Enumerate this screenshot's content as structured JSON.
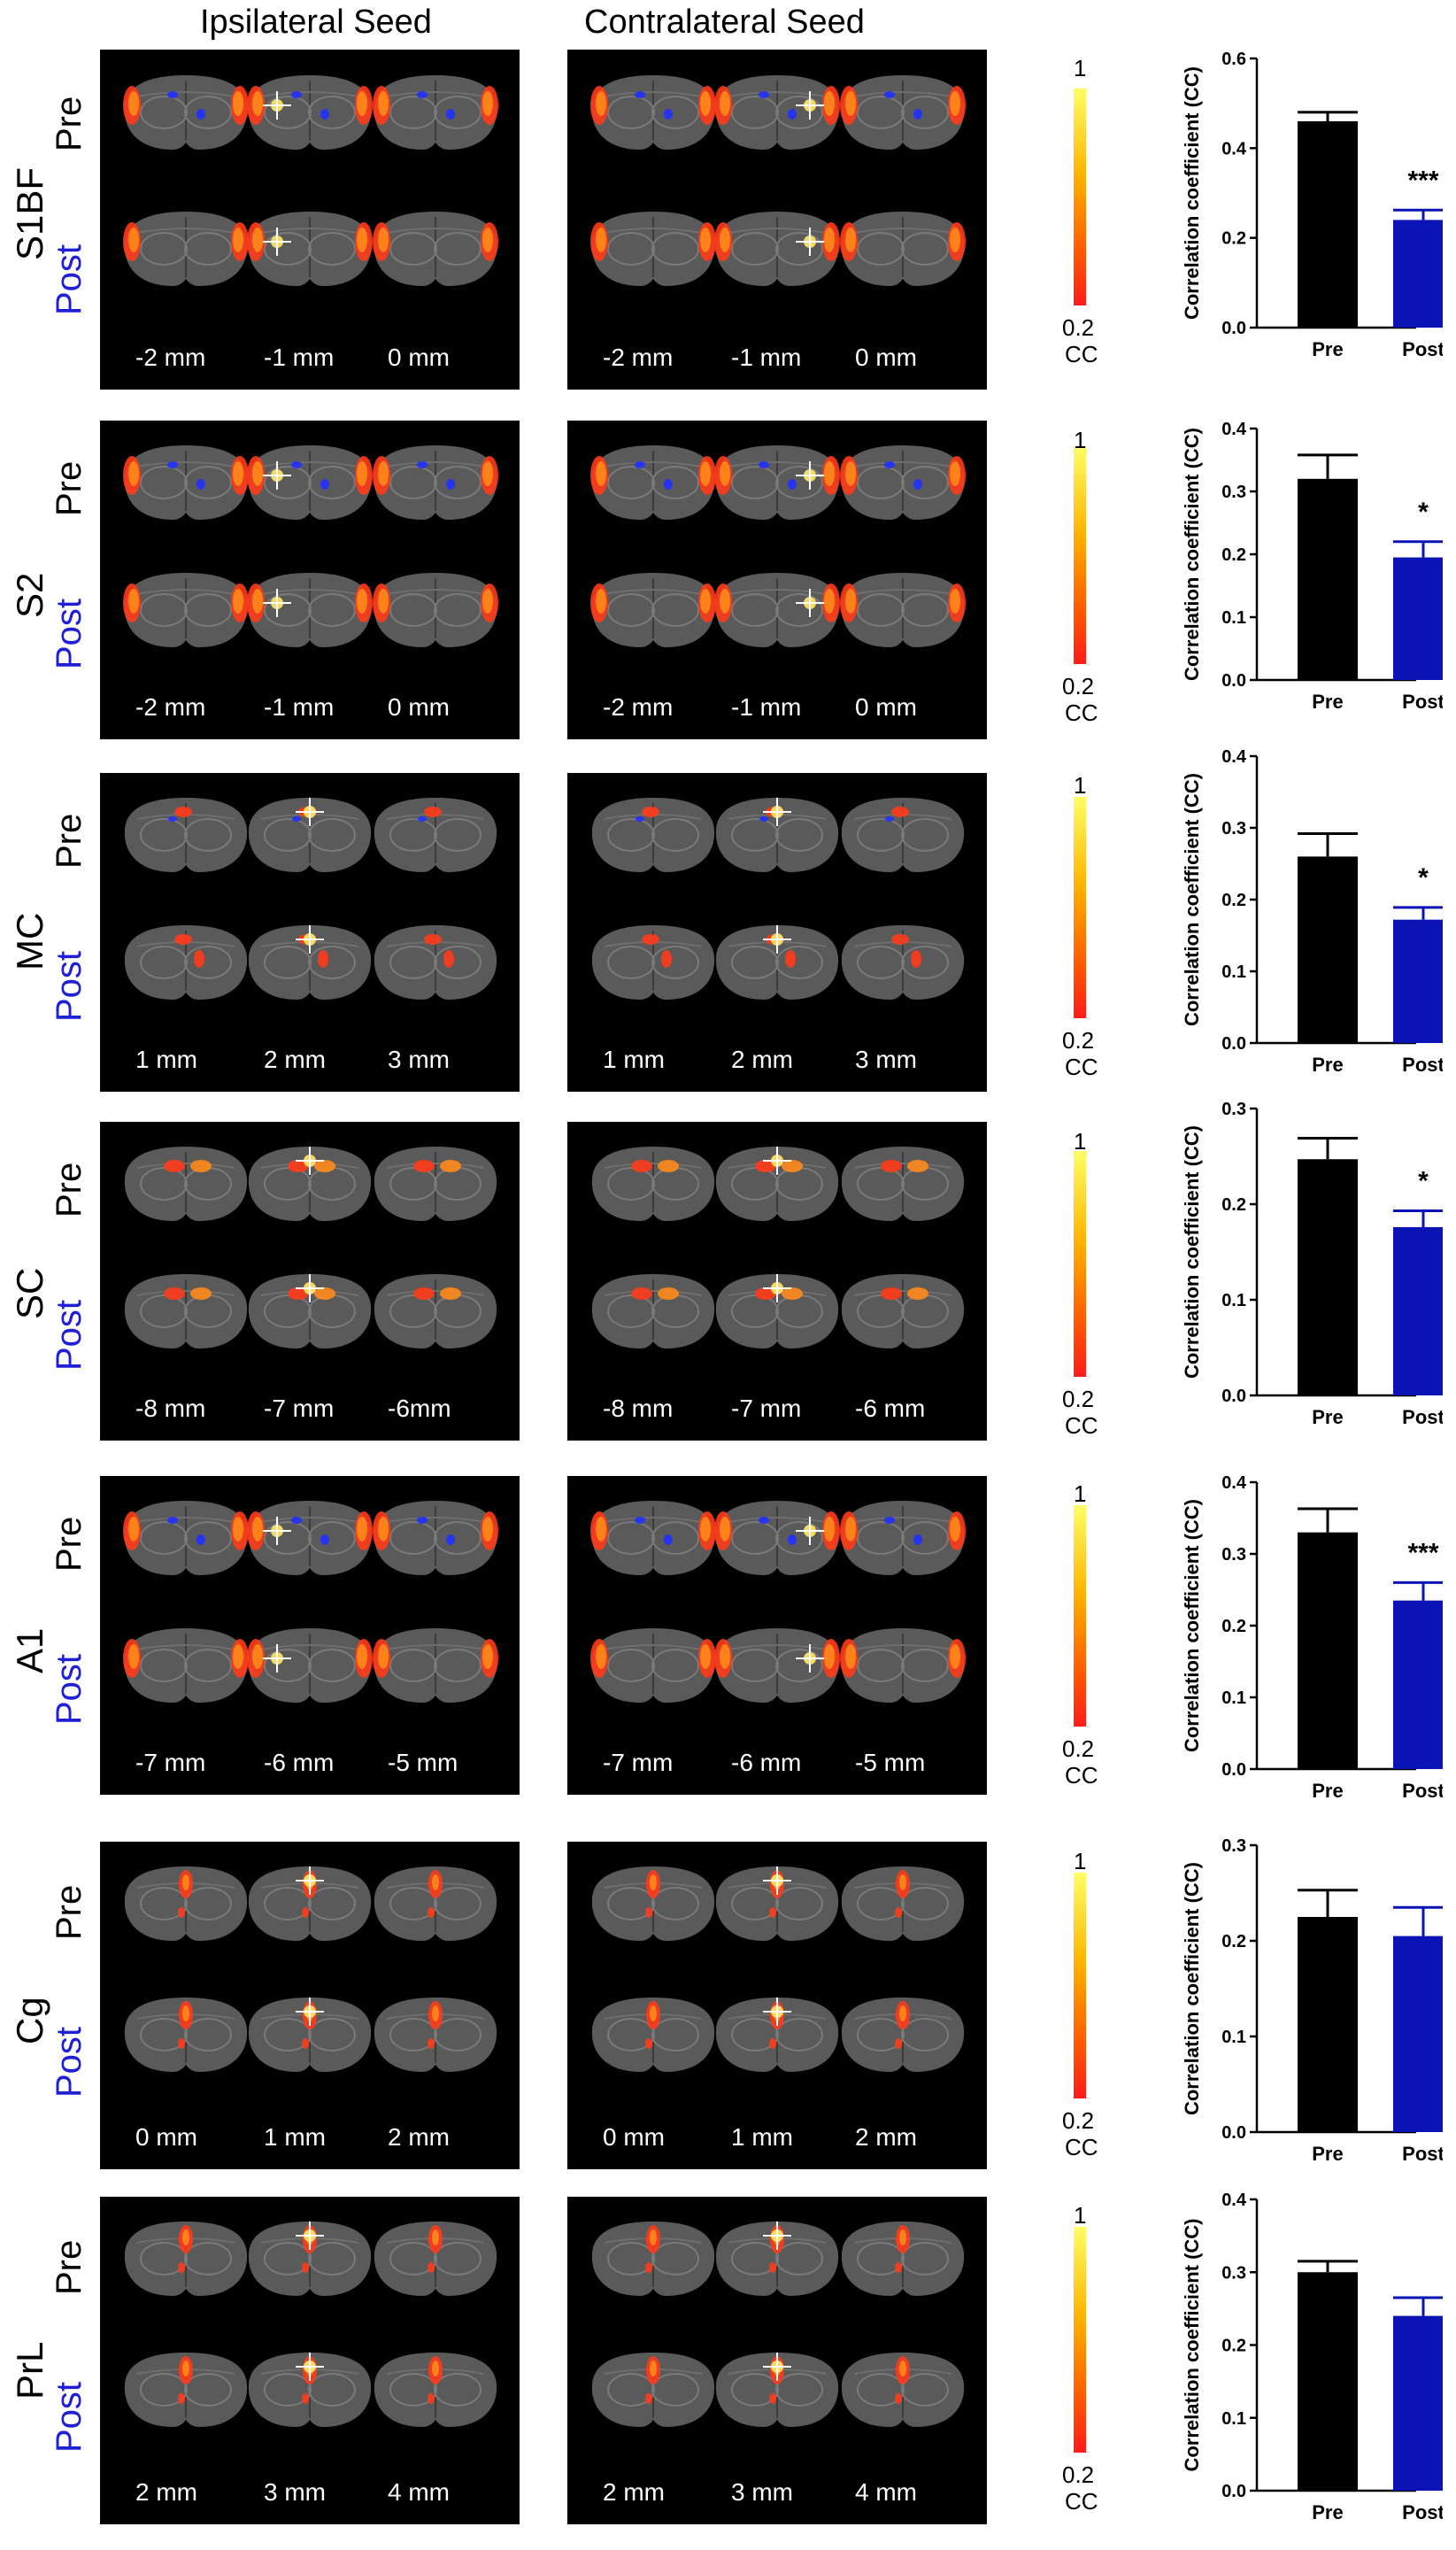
{
  "header": {
    "ipsi": "Ipsilateral Seed",
    "contra": "Contralateral Seed"
  },
  "colorbar": {
    "top": "1",
    "bottom": "0.2",
    "unit": "CC"
  },
  "rows": [
    {
      "region": "S1BF",
      "pre": "Pre",
      "post": "Post",
      "ipsi_mm": [
        "-2 mm",
        "-1 mm",
        "0 mm"
      ],
      "contra_mm": [
        "-2 mm",
        "-1 mm",
        "0 mm"
      ]
    },
    {
      "region": "S2",
      "pre": "Pre",
      "post": "Post",
      "ipsi_mm": [
        "-2 mm",
        "-1 mm",
        "0 mm"
      ],
      "contra_mm": [
        "-2 mm",
        "-1 mm",
        "0 mm"
      ]
    },
    {
      "region": "MC",
      "pre": "Pre",
      "post": "Post",
      "ipsi_mm": [
        "1 mm",
        "2 mm",
        "3 mm"
      ],
      "contra_mm": [
        "1 mm",
        "2 mm",
        "3 mm"
      ]
    },
    {
      "region": "SC",
      "pre": "Pre",
      "post": "Post",
      "ipsi_mm": [
        "-8 mm",
        "-7 mm",
        "-6mm"
      ],
      "contra_mm": [
        "-8 mm",
        "-7 mm",
        "-6 mm"
      ]
    },
    {
      "region": "A1",
      "pre": "Pre",
      "post": "Post",
      "ipsi_mm": [
        "-7 mm",
        "-6 mm",
        "-5 mm"
      ],
      "contra_mm": [
        "-7 mm",
        "-6 mm",
        "-5 mm"
      ]
    },
    {
      "region": "Cg",
      "pre": "Pre",
      "post": "Post",
      "ipsi_mm": [
        "0 mm",
        "1 mm",
        "2 mm"
      ],
      "contra_mm": [
        "0 mm",
        "1 mm",
        "2 mm"
      ]
    },
    {
      "region": "PrL",
      "pre": "Pre",
      "post": "Post",
      "ipsi_mm": [
        "2 mm",
        "3 mm",
        "4 mm"
      ],
      "contra_mm": [
        "2 mm",
        "3 mm",
        "4 mm"
      ]
    }
  ],
  "colors": {
    "pre_bar": "#000000",
    "post_bar": "#0a14b4",
    "post_label": "#1f1fd6"
  },
  "chart_data": [
    {
      "type": "bar",
      "categories": [
        "Pre",
        "Post"
      ],
      "values": [
        0.46,
        0.24
      ],
      "errors": [
        0.02,
        0.022
      ],
      "ylabel": "Correlation coefficient (CC)",
      "ylim": [
        0,
        0.6
      ],
      "yticks": [
        "0.0",
        "0.2",
        "0.4",
        "0.6"
      ],
      "significance": "***"
    },
    {
      "type": "bar",
      "categories": [
        "Pre",
        "Post"
      ],
      "values": [
        0.32,
        0.195
      ],
      "errors": [
        0.038,
        0.025
      ],
      "ylabel": "Correlation coefficient (CC)",
      "ylim": [
        0,
        0.4
      ],
      "yticks": [
        "0.0",
        "0.1",
        "0.2",
        "0.3",
        "0.4"
      ],
      "significance": "*"
    },
    {
      "type": "bar",
      "categories": [
        "Pre",
        "Post"
      ],
      "values": [
        0.26,
        0.172
      ],
      "errors": [
        0.032,
        0.017
      ],
      "ylabel": "Correlation coefficient (CC)",
      "ylim": [
        0,
        0.4
      ],
      "yticks": [
        "0.0",
        "0.1",
        "0.2",
        "0.3",
        "0.4"
      ],
      "significance": "*"
    },
    {
      "type": "bar",
      "categories": [
        "Pre",
        "Post"
      ],
      "values": [
        0.247,
        0.176
      ],
      "errors": [
        0.022,
        0.017
      ],
      "ylabel": "Correlation coefficient (CC)",
      "ylim": [
        0,
        0.3
      ],
      "yticks": [
        "0.0",
        "0.1",
        "0.2",
        "0.3"
      ],
      "significance": "*"
    },
    {
      "type": "bar",
      "categories": [
        "Pre",
        "Post"
      ],
      "values": [
        0.33,
        0.235
      ],
      "errors": [
        0.033,
        0.025
      ],
      "ylabel": "Correlation coefficient (CC)",
      "ylim": [
        0,
        0.4
      ],
      "yticks": [
        "0.0",
        "0.1",
        "0.2",
        "0.3",
        "0.4"
      ],
      "significance": "***"
    },
    {
      "type": "bar",
      "categories": [
        "Pre",
        "Post"
      ],
      "values": [
        0.225,
        0.205
      ],
      "errors": [
        0.028,
        0.03
      ],
      "ylabel": "Correlation coefficient (CC)",
      "ylim": [
        0,
        0.3
      ],
      "yticks": [
        "0.0",
        "0.1",
        "0.2",
        "0.3"
      ],
      "significance": ""
    },
    {
      "type": "bar",
      "categories": [
        "Pre",
        "Post"
      ],
      "values": [
        0.3,
        0.24
      ],
      "errors": [
        0.015,
        0.025
      ],
      "ylabel": "Correlation coefficient (CC)",
      "ylim": [
        0,
        0.4
      ],
      "yticks": [
        "0.0",
        "0.1",
        "0.2",
        "0.3",
        "0.4"
      ],
      "significance": ""
    }
  ]
}
